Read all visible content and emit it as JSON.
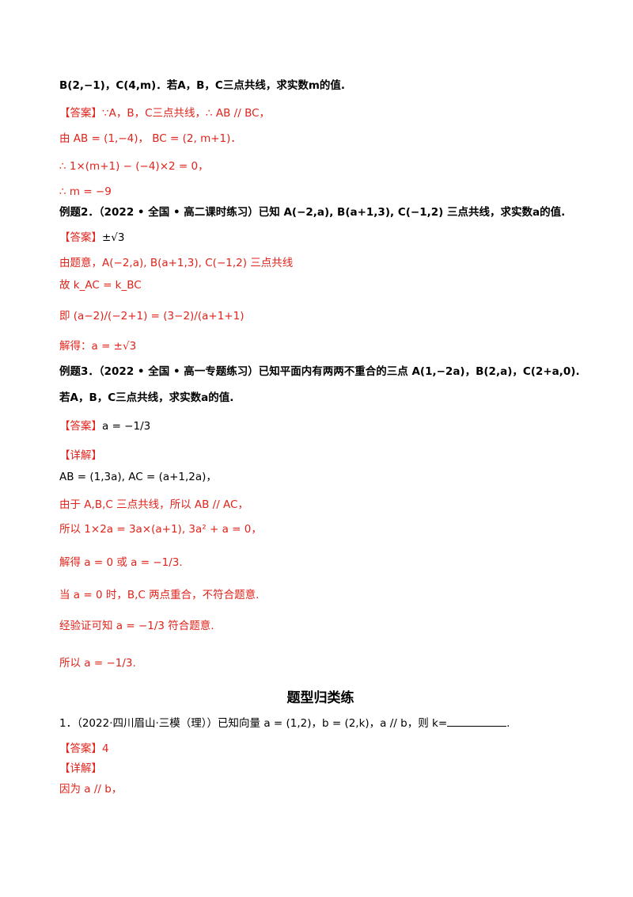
{
  "lines": {
    "l01": "B(2,−1)，C(4,m)．若A，B，C三点共线，求实数m的值.",
    "l02_tag": "【答案】",
    "l02_text": "∵A，B，C三点共线，∴ AB // BC，",
    "l03": "由 AB = (1,−4)， BC = (2, m+1)．",
    "l04": "∴ 1×(m+1) − (−4)×2 = 0，",
    "l05": "∴ m = −9",
    "l06": "例题2．（2022 • 全国 • 高二课时练习）已知 A(−2,a), B(a+1,3), C(−1,2) 三点共线，求实数a的值.",
    "l07_tag": "【答案】",
    "l07_text": "±√3",
    "l08": "由题意，A(−2,a), B(a+1,3), C(−1,2) 三点共线",
    "l09": "故 k_AC = k_BC",
    "l10": "即 (a−2)/(−2+1) = (3−2)/(a+1+1)",
    "l11": "解得：a = ±√3",
    "l12": "例题3．（2022 • 全国 • 高一专题练习）已知平面内有两两不重合的三点 A(1,−2a)，B(2,a)，C(2+a,0).",
    "l13": "若A，B，C三点共线，求实数a的值.",
    "l14_tag": "【答案】",
    "l14_text": "a = −1/3",
    "l15": "【详解】",
    "l16": "AB = (1,3a), AC = (a+1,2a)，",
    "l17": "由于 A,B,C 三点共线，所以 AB // AC，",
    "l18": "所以 1×2a = 3a×(a+1), 3a² + a = 0，",
    "l19": "解得 a = 0 或 a = −1/3.",
    "l20": "当 a = 0 时，B,C 两点重合，不符合题意.",
    "l21": "经验证可知 a = −1/3 符合题意.",
    "l22": "所以 a = −1/3."
  },
  "section_heading": "题型归类练",
  "exercise": {
    "q1": "1．（2022·四川眉山·三模（理））已知向量 a = (1,2)，b = (2,k)，a // b，则 k=",
    "q1_end": ".",
    "answer_tag": "【答案】",
    "answer": "4",
    "detail": "【详解】",
    "reason": "因为 a // b，"
  }
}
